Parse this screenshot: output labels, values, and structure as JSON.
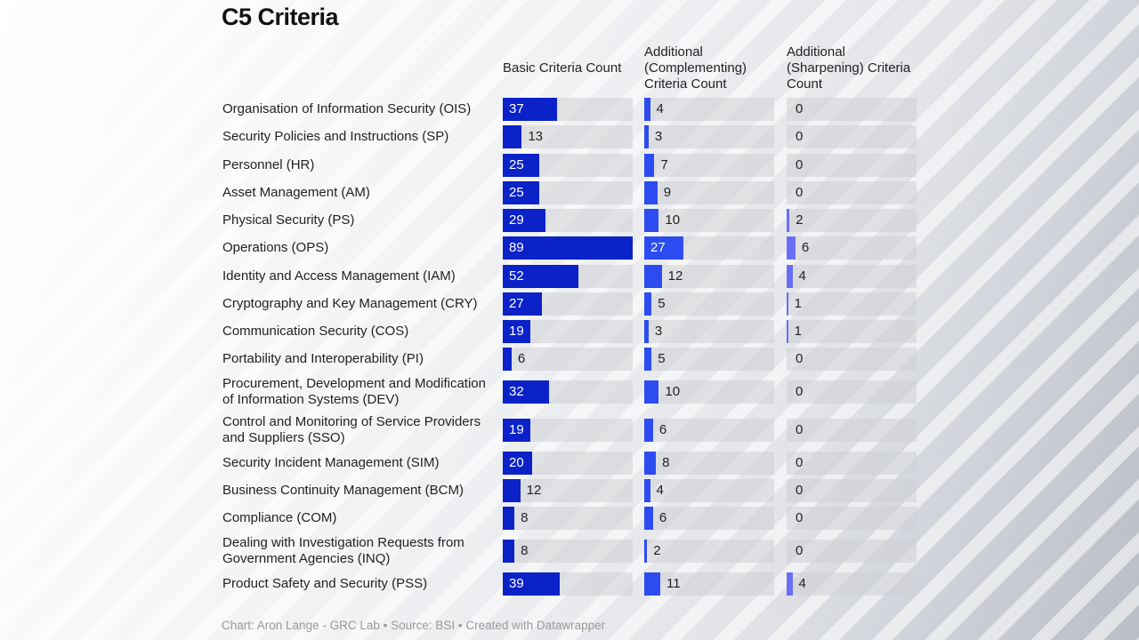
{
  "chart_data": {
    "type": "bar",
    "title": "C5 Criteria",
    "columns": [
      "Basic Criteria Count",
      "Additional (Complementing) Criteria Count",
      "Additional (Sharpening) Criteria Count"
    ],
    "colors": [
      "#0a22c8",
      "#2c4cf2",
      "#6a6ef6"
    ],
    "max": 89,
    "categories": [
      "Organisation of Information Security (OIS)",
      "Security Policies and Instructions (SP)",
      "Personnel (HR)",
      "Asset Management (AM)",
      "Physical Security (PS)",
      "Operations (OPS)",
      "Identity and Access Management (IAM)",
      "Cryptography and Key Management (CRY)",
      "Communication Security (COS)",
      "Portability and Interoperability (PI)",
      "Procurement, Development and Modification of Information Systems (DEV)",
      "Control and Monitoring of Service Providers and Suppliers (SSO)",
      "Security Incident Management (SIM)",
      "Business Continuity Management (BCM)",
      "Compliance (COM)",
      "Dealing with Investigation Requests from Government Agencies (INQ)",
      "Product Safety and Security (PSS)"
    ],
    "series": [
      {
        "name": "Basic Criteria Count",
        "values": [
          37,
          13,
          25,
          25,
          29,
          89,
          52,
          27,
          19,
          6,
          32,
          19,
          20,
          12,
          8,
          8,
          39
        ]
      },
      {
        "name": "Additional (Complementing) Criteria Count",
        "values": [
          4,
          3,
          7,
          9,
          10,
          27,
          12,
          5,
          3,
          5,
          10,
          6,
          8,
          4,
          6,
          2,
          11
        ]
      },
      {
        "name": "Additional (Sharpening) Criteria Count",
        "values": [
          0,
          0,
          0,
          0,
          2,
          6,
          4,
          1,
          1,
          0,
          0,
          0,
          0,
          0,
          0,
          0,
          4
        ]
      }
    ],
    "footer": "Chart: Aron Lange - GRC Lab • Source: BSI • Created with Datawrapper"
  }
}
